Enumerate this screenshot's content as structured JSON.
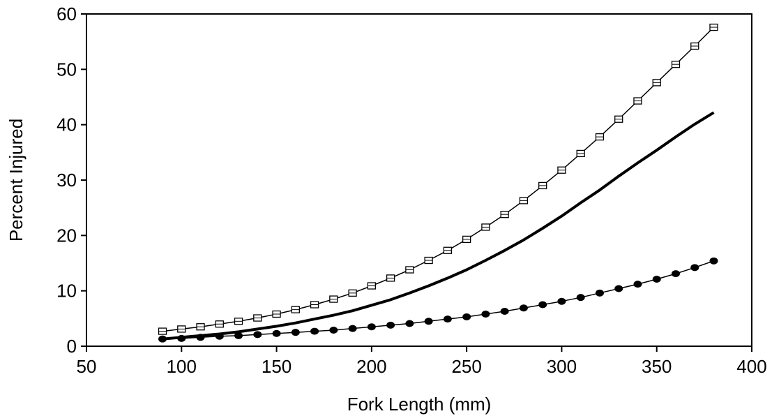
{
  "chart_data": {
    "type": "line",
    "title": "",
    "xlabel": "Fork Length (mm)",
    "ylabel": "Percent Injured",
    "xlim": [
      50,
      400
    ],
    "ylim": [
      0,
      60
    ],
    "xticks": [
      50,
      100,
      150,
      200,
      250,
      300,
      350,
      400
    ],
    "yticks": [
      0,
      10,
      20,
      30,
      40,
      50,
      60
    ],
    "grid": false,
    "legend": "none",
    "x": [
      90,
      100,
      110,
      120,
      130,
      140,
      150,
      160,
      170,
      180,
      190,
      200,
      210,
      220,
      230,
      240,
      250,
      260,
      270,
      280,
      290,
      300,
      310,
      320,
      330,
      340,
      350,
      360,
      370,
      380
    ],
    "series": [
      {
        "marker": "open-square",
        "line": "thin",
        "color": "#000000",
        "values": [
          2.7,
          3.1,
          3.5,
          4.0,
          4.5,
          5.1,
          5.8,
          6.6,
          7.5,
          8.5,
          9.6,
          10.9,
          12.3,
          13.8,
          15.5,
          17.3,
          19.3,
          21.5,
          23.8,
          26.3,
          29.0,
          31.8,
          34.8,
          37.8,
          41.0,
          44.3,
          47.6,
          50.9,
          54.2,
          57.6
        ]
      },
      {
        "marker": "none",
        "line": "thick",
        "color": "#000000",
        "values": [
          1.3,
          1.6,
          1.9,
          2.2,
          2.6,
          3.1,
          3.6,
          4.2,
          4.9,
          5.6,
          6.4,
          7.4,
          8.4,
          9.6,
          10.9,
          12.3,
          13.8,
          15.5,
          17.3,
          19.2,
          21.3,
          23.5,
          25.9,
          28.2,
          30.7,
          33.1,
          35.4,
          37.8,
          40.1,
          42.2
        ]
      },
      {
        "marker": "filled-circle",
        "line": "thin",
        "color": "#000000",
        "values": [
          1.3,
          1.4,
          1.6,
          1.8,
          1.9,
          2.1,
          2.3,
          2.5,
          2.7,
          2.9,
          3.2,
          3.5,
          3.8,
          4.1,
          4.5,
          4.9,
          5.3,
          5.8,
          6.3,
          6.9,
          7.5,
          8.1,
          8.8,
          9.6,
          10.4,
          11.2,
          12.1,
          13.1,
          14.2,
          15.4
        ]
      }
    ]
  }
}
